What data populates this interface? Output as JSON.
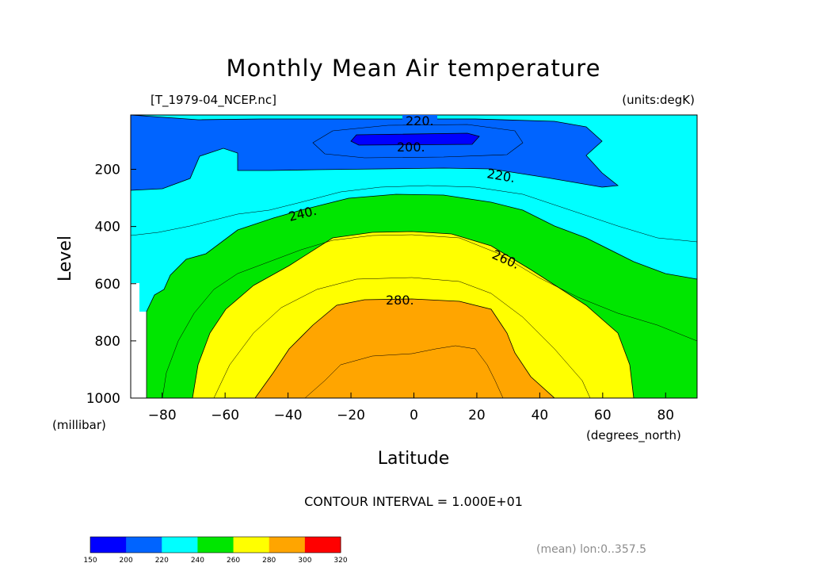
{
  "chart_data": {
    "type": "contour",
    "title": "Monthly Mean Air temperature",
    "source_label": "[T_1979-04_NCEP.nc]",
    "units_label": "(units:degK)",
    "xlabel": "Latitude",
    "ylabel": "Level",
    "x_unit_label": "(degrees_north)",
    "y_unit_label": "(millibar)",
    "xlim": [
      -90,
      90
    ],
    "ylim": [
      1000,
      10
    ],
    "x_ticks": [
      "-80",
      "-60",
      "-40",
      "-20",
      "0",
      "20",
      "40",
      "60",
      "80"
    ],
    "y_ticks": [
      "200",
      "400",
      "600",
      "800",
      "1000"
    ],
    "contour_interval_text": "CONTOUR INTERVAL = 1.000E+01",
    "contour_labels": [
      "220.",
      "200.",
      "220.",
      "240.",
      "260.",
      "280."
    ],
    "footer": "(mean) lon:0..357.5",
    "colorbar": {
      "levels": [
        "150",
        "200",
        "220",
        "240",
        "260",
        "280",
        "300",
        "320"
      ],
      "colors": [
        "#0000ff",
        "#0064ff",
        "#00ffff",
        "#00e600",
        "#ffff00",
        "#ffa500",
        "#ff0000"
      ]
    },
    "filled_regions": [
      {
        "min": 200,
        "max": 220,
        "color": "#0064ff"
      },
      {
        "min": 190,
        "max": 200,
        "color": "#0000ff"
      },
      {
        "min": 220,
        "max": 240,
        "color": "#00ffff"
      },
      {
        "min": 240,
        "max": 260,
        "color": "#00e600"
      },
      {
        "min": 260,
        "max": 280,
        "color": "#ffff00"
      },
      {
        "min": 280,
        "max": 300,
        "color": "#ffa500"
      }
    ]
  }
}
